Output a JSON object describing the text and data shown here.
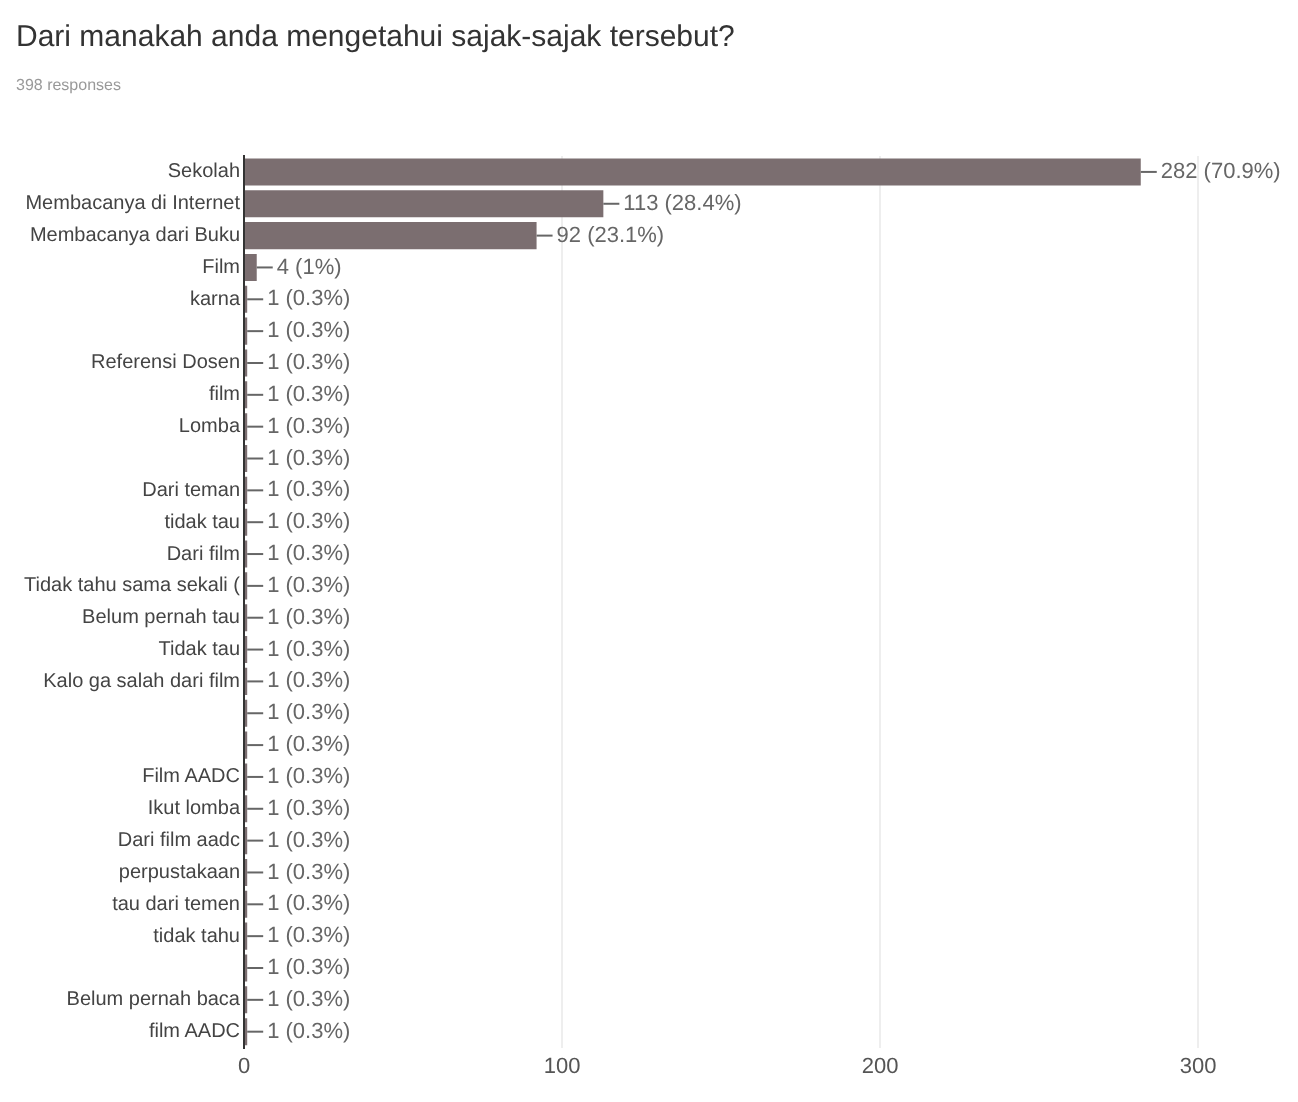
{
  "chart_data": {
    "type": "bar",
    "orientation": "horizontal",
    "title": "Dari manakah anda mengetahui sajak-sajak tersebut?",
    "subtitle": "398 responses",
    "categories": [
      "Sekolah",
      "Membacanya di Internet",
      "Membacanya dari Buku",
      "Film",
      "karna",
      null,
      "Referensi Dosen",
      "film",
      "Lomba",
      null,
      "Dari teman",
      "tidak tau",
      "Dari film",
      "Tidak tahu sama sekali (",
      "Belum pernah tau",
      "Tidak tau",
      "Kalo ga salah dari film",
      null,
      null,
      "Film AADC",
      "Ikut lomba",
      "Dari film aadc",
      "perpustakaan",
      "tau dari temen",
      "tidak tahu",
      null,
      "Belum pernah baca",
      "film AADC"
    ],
    "values": [
      282,
      113,
      92,
      4,
      1,
      1,
      1,
      1,
      1,
      1,
      1,
      1,
      1,
      1,
      1,
      1,
      1,
      1,
      1,
      1,
      1,
      1,
      1,
      1,
      1,
      1,
      1,
      1
    ],
    "value_labels": [
      "282 (70.9%)",
      "113 (28.4%)",
      "92 (23.1%)",
      "4 (1%)",
      "1 (0.3%)",
      "1 (0.3%)",
      "1 (0.3%)",
      "1 (0.3%)",
      "1 (0.3%)",
      "1 (0.3%)",
      "1 (0.3%)",
      "1 (0.3%)",
      "1 (0.3%)",
      "1 (0.3%)",
      "1 (0.3%)",
      "1 (0.3%)",
      "1 (0.3%)",
      "1 (0.3%)",
      "1 (0.3%)",
      "1 (0.3%)",
      "1 (0.3%)",
      "1 (0.3%)",
      "1 (0.3%)",
      "1 (0.3%)",
      "1 (0.3%)",
      "1 (0.3%)",
      "1 (0.3%)",
      "1 (0.3%)"
    ],
    "color": "#7b6e70",
    "xlim": [
      0,
      300
    ],
    "xticks": [
      0,
      100,
      200,
      300
    ],
    "grid": "x",
    "legend": false
  }
}
